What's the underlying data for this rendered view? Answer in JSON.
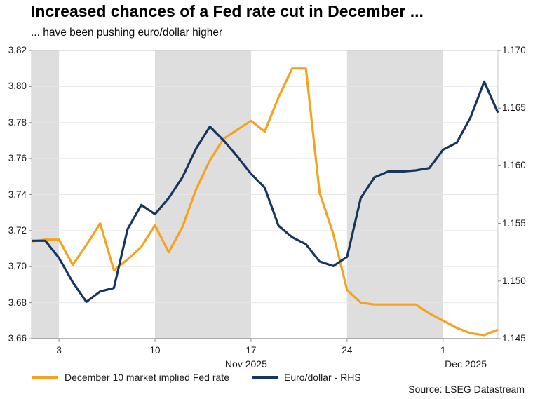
{
  "title": "Increased chances of a Fed rate cut in December ...",
  "subtitle": "... have been pushing euro/dollar higher",
  "source": "Source: LSEG Datastream",
  "colors": {
    "fed_rate_line": "#F7A21E",
    "eurusd_line": "#17365D",
    "weekend_band": "#DEDEDE",
    "gridline": "#E6E6E6",
    "axis_line": "#8C8C8C",
    "frame": "#C8C8C8",
    "text": "#1A1A1A"
  },
  "chart_data": {
    "type": "line",
    "x": [
      "Nov 1",
      "Nov 2",
      "Nov 3",
      "Nov 4",
      "Nov 5",
      "Nov 6",
      "Nov 7",
      "Nov 8",
      "Nov 9",
      "Nov 10",
      "Nov 11",
      "Nov 12",
      "Nov 13",
      "Nov 14",
      "Nov 15",
      "Nov 16",
      "Nov 17",
      "Nov 18",
      "Nov 19",
      "Nov 20",
      "Nov 21",
      "Nov 22",
      "Nov 23",
      "Nov 24",
      "Nov 25",
      "Nov 26",
      "Nov 27",
      "Nov 28",
      "Nov 29",
      "Nov 30",
      "Dec 1",
      "Dec 2",
      "Dec 3",
      "Dec 4",
      "Dec 5"
    ],
    "series": [
      {
        "name": "December 10 market implied Fed rate",
        "axis": "left",
        "color": "#F7A21E",
        "values": [
          3.714,
          3.715,
          3.715,
          3.701,
          3.712,
          3.724,
          3.698,
          3.704,
          3.711,
          3.723,
          3.708,
          3.722,
          3.743,
          3.759,
          3.771,
          3.776,
          3.781,
          3.775,
          3.794,
          3.81,
          3.81,
          3.741,
          3.718,
          3.687,
          3.68,
          3.679,
          3.679,
          3.679,
          3.679,
          3.674,
          3.67,
          3.666,
          3.663,
          3.662,
          3.665
        ]
      },
      {
        "name": "Euro/dollar - RHS",
        "axis": "right",
        "color": "#17365D",
        "values": [
          1.1535,
          1.1535,
          1.152,
          1.1499,
          1.1482,
          1.1491,
          1.1494,
          1.1545,
          1.1566,
          1.1558,
          1.1572,
          1.159,
          1.1615,
          1.1634,
          1.1622,
          1.1608,
          1.1593,
          1.1581,
          1.1548,
          1.1538,
          1.1532,
          1.1517,
          1.1513,
          1.1521,
          1.1572,
          1.159,
          1.1595,
          1.1595,
          1.1596,
          1.1598,
          1.1614,
          1.162,
          1.1642,
          1.1673,
          1.1646
        ]
      }
    ],
    "left_axis": {
      "min": 3.66,
      "max": 3.82,
      "decimals": 2,
      "ticks": [
        3.82,
        3.8,
        3.78,
        3.76,
        3.74,
        3.72,
        3.7,
        3.68,
        3.66
      ]
    },
    "right_axis": {
      "min": 1.145,
      "max": 1.17,
      "decimals": 3,
      "ticks": [
        1.17,
        1.165,
        1.16,
        1.155,
        1.15,
        1.145
      ]
    },
    "x_ticks": [
      {
        "label": "3",
        "index": 2
      },
      {
        "label": "10",
        "index": 9
      },
      {
        "label": "17",
        "index": 16
      },
      {
        "label": "24",
        "index": 23
      },
      {
        "label": "1",
        "index": 30
      }
    ],
    "month_labels": [
      {
        "label": "Nov 2025",
        "pos": 0.46
      },
      {
        "label": "Dec 2025",
        "pos": 0.931
      }
    ],
    "shaded_weeks": [
      {
        "from": 0,
        "to": 2
      },
      {
        "from": 9,
        "to": 16
      },
      {
        "from": 23,
        "to": 30
      }
    ],
    "grid": "horizontal",
    "legend_position": "bottom-left"
  }
}
